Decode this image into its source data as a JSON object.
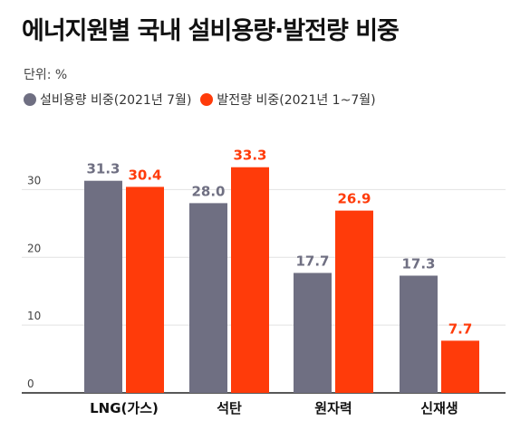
{
  "title": "에너지원별 국내 설비용량·발전량 비중",
  "unit_label": "단위: %",
  "legend": [
    {
      "label": "설비용량 비중(2021년 7월)",
      "color": "#6f6f82"
    },
    {
      "label": "발전량 비중(2021년 1~7월)",
      "color": "#ff3b0a"
    }
  ],
  "chart_data": {
    "type": "bar",
    "categories": [
      "LNG(가스)",
      "석탄",
      "원자력",
      "신재생"
    ],
    "series": [
      {
        "name": "설비용량 비중(2021년 7월)",
        "values": [
          31.3,
          28.0,
          17.7,
          17.3
        ],
        "color": "#6f6f82",
        "label_color": "#6f6f82"
      },
      {
        "name": "발전량 비중(2021년 1~7월)",
        "values": [
          30.4,
          33.3,
          26.9,
          7.7
        ],
        "color": "#ff3b0a",
        "label_color": "#ff3b0a"
      }
    ],
    "yticks": [
      "0",
      "10",
      "20",
      "30"
    ],
    "ylim": [
      0,
      35
    ],
    "grid": true,
    "legend_position": "top-left"
  }
}
